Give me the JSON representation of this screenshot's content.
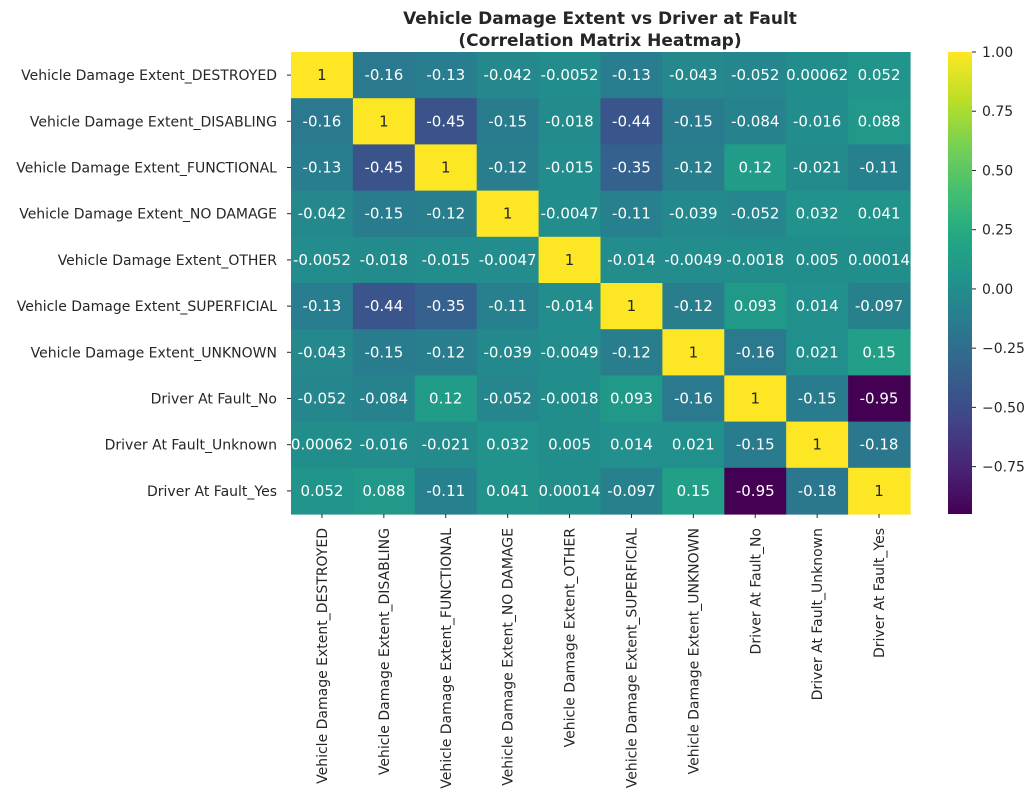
{
  "chart_data": {
    "type": "heatmap",
    "title": "Vehicle Damage Extent vs Driver at Fault",
    "subtitle": "(Correlation Matrix Heatmap)",
    "colormap": "viridis",
    "row_labels": [
      "Vehicle Damage Extent_DESTROYED",
      "Vehicle Damage Extent_DISABLING",
      "Vehicle Damage Extent_FUNCTIONAL",
      "Vehicle Damage Extent_NO DAMAGE",
      "Vehicle Damage Extent_OTHER",
      "Vehicle Damage Extent_SUPERFICIAL",
      "Vehicle Damage Extent_UNKNOWN",
      "Driver At Fault_No",
      "Driver At Fault_Unknown",
      "Driver At Fault_Yes"
    ],
    "col_labels": [
      "Vehicle Damage Extent_DESTROYED",
      "Vehicle Damage Extent_DISABLING",
      "Vehicle Damage Extent_FUNCTIONAL",
      "Vehicle Damage Extent_NO DAMAGE",
      "Vehicle Damage Extent_OTHER",
      "Vehicle Damage Extent_SUPERFICIAL",
      "Vehicle Damage Extent_UNKNOWN",
      "Driver At Fault_No",
      "Driver At Fault_Unknown",
      "Driver At Fault_Yes"
    ],
    "values": [
      [
        1,
        -0.16,
        -0.13,
        -0.042,
        -0.0052,
        -0.13,
        -0.043,
        -0.052,
        0.00062,
        0.052
      ],
      [
        -0.16,
        1,
        -0.45,
        -0.15,
        -0.018,
        -0.44,
        -0.15,
        -0.084,
        -0.016,
        0.088
      ],
      [
        -0.13,
        -0.45,
        1,
        -0.12,
        -0.015,
        -0.35,
        -0.12,
        0.12,
        -0.021,
        -0.11
      ],
      [
        -0.042,
        -0.15,
        -0.12,
        1,
        -0.0047,
        -0.11,
        -0.039,
        -0.052,
        0.032,
        0.041
      ],
      [
        -0.0052,
        -0.018,
        -0.015,
        -0.0047,
        1,
        -0.014,
        -0.0049,
        -0.0018,
        0.005,
        0.00014
      ],
      [
        -0.13,
        -0.44,
        -0.35,
        -0.11,
        -0.014,
        1,
        -0.12,
        0.093,
        0.014,
        -0.097
      ],
      [
        -0.043,
        -0.15,
        -0.12,
        -0.039,
        -0.0049,
        -0.12,
        1,
        -0.16,
        0.021,
        0.15
      ],
      [
        -0.052,
        -0.084,
        0.12,
        -0.052,
        -0.0018,
        0.093,
        -0.16,
        1,
        -0.15,
        -0.95
      ],
      [
        0.00062,
        -0.016,
        -0.021,
        0.032,
        0.005,
        0.014,
        0.021,
        -0.15,
        1,
        -0.18
      ],
      [
        0.052,
        0.088,
        -0.11,
        0.041,
        0.00014,
        -0.097,
        0.15,
        -0.95,
        -0.18,
        1
      ]
    ],
    "cell_text": [
      [
        "1",
        "-0.16",
        "-0.13",
        "-0.042",
        "-0.0052",
        "-0.13",
        "-0.043",
        "-0.052",
        "0.00062",
        "0.052"
      ],
      [
        "-0.16",
        "1",
        "-0.45",
        "-0.15",
        "-0.018",
        "-0.44",
        "-0.15",
        "-0.084",
        "-0.016",
        "0.088"
      ],
      [
        "-0.13",
        "-0.45",
        "1",
        "-0.12",
        "-0.015",
        "-0.35",
        "-0.12",
        "0.12",
        "-0.021",
        "-0.11"
      ],
      [
        "-0.042",
        "-0.15",
        "-0.12",
        "1",
        "-0.0047",
        "-0.11",
        "-0.039",
        "-0.052",
        "0.032",
        "0.041"
      ],
      [
        "-0.0052",
        "-0.018",
        "-0.015",
        "-0.0047",
        "1",
        "-0.014",
        "-0.0049",
        "-0.0018",
        "0.005",
        "0.00014"
      ],
      [
        "-0.13",
        "-0.44",
        "-0.35",
        "-0.11",
        "-0.014",
        "1",
        "-0.12",
        "0.093",
        "0.014",
        "-0.097"
      ],
      [
        "-0.043",
        "-0.15",
        "-0.12",
        "-0.039",
        "-0.0049",
        "-0.12",
        "1",
        "-0.16",
        "0.021",
        "0.15"
      ],
      [
        "-0.052",
        "-0.084",
        "0.12",
        "-0.052",
        "-0.0018",
        "0.093",
        "-0.16",
        "1",
        "-0.15",
        "-0.95"
      ],
      [
        "0.00062",
        "-0.016",
        "-0.021",
        "0.032",
        "0.005",
        "0.014",
        "0.021",
        "-0.15",
        "1",
        "-0.18"
      ],
      [
        "0.052",
        "0.088",
        "-0.11",
        "0.041",
        "0.00014",
        "-0.097",
        "0.15",
        "-0.95",
        "-0.18",
        "1"
      ]
    ],
    "vmin": -0.95,
    "vmax": 1.0,
    "colorbar_ticks": [
      1.0,
      0.75,
      0.5,
      0.25,
      0.0,
      -0.25,
      -0.5,
      -0.75
    ],
    "colorbar_tick_labels": [
      "1.00",
      "0.75",
      "0.50",
      "0.25",
      "0.00",
      "−0.25",
      "−0.50",
      "−0.75"
    ]
  }
}
